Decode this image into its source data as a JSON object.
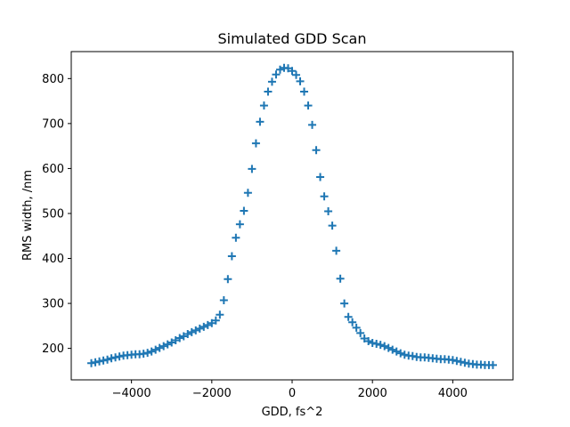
{
  "chart_data": {
    "type": "scatter",
    "title": "Simulated GDD Scan",
    "xlabel": "GDD, fs^2",
    "ylabel": "RMS width, /nm",
    "xlim": [
      -5500,
      5500
    ],
    "ylim": [
      130,
      860
    ],
    "xticks": [
      -4000,
      -2000,
      0,
      2000,
      4000
    ],
    "xtick_labels": [
      "−4000",
      "−2000",
      "0",
      "2000",
      "4000"
    ],
    "yticks": [
      200,
      300,
      400,
      500,
      600,
      700,
      800
    ],
    "ytick_labels": [
      "200",
      "300",
      "400",
      "500",
      "600",
      "700",
      "800"
    ],
    "grid": false,
    "legend": "none",
    "marker": "+",
    "color": "#1f77b4",
    "series": [
      {
        "x": [
          -5000,
          -4900,
          -4800,
          -4700,
          -4600,
          -4500,
          -4400,
          -4300,
          -4200,
          -4100,
          -4000,
          -3900,
          -3800,
          -3700,
          -3600,
          -3500,
          -3400,
          -3300,
          -3200,
          -3100,
          -3000,
          -2900,
          -2800,
          -2700,
          -2600,
          -2500,
          -2400,
          -2300,
          -2200,
          -2100,
          -2000,
          -1900,
          -1800,
          -1700,
          -1600,
          -1500,
          -1400,
          -1300,
          -1200,
          -1100,
          -1000,
          -900,
          -800,
          -700,
          -600,
          -500,
          -400,
          -300,
          -200,
          -100,
          0,
          100,
          200,
          300,
          400,
          500,
          600,
          700,
          800,
          900,
          1000,
          1100,
          1200,
          1300,
          1400,
          1500,
          1600,
          1700,
          1800,
          1900,
          2000,
          2100,
          2200,
          2300,
          2400,
          2500,
          2600,
          2700,
          2800,
          2900,
          3000,
          3100,
          3200,
          3300,
          3400,
          3500,
          3600,
          3700,
          3800,
          3900,
          4000,
          4100,
          4200,
          4300,
          4400,
          4500,
          4600,
          4700,
          4800,
          4900,
          5000
        ],
        "y": [
          167,
          169,
          171,
          173,
          175,
          178,
          180,
          182,
          184,
          185,
          186,
          187,
          187,
          188,
          190,
          193,
          197,
          201,
          205,
          209,
          213,
          218,
          223,
          227,
          232,
          236,
          240,
          244,
          248,
          252,
          256,
          262,
          275,
          307,
          354,
          405,
          446,
          476,
          506,
          546,
          599,
          656,
          704,
          740,
          771,
          793,
          809,
          820,
          824,
          823,
          817,
          808,
          794,
          771,
          740,
          697,
          641,
          581,
          538,
          505,
          473,
          417,
          355,
          300,
          270,
          258,
          246,
          234,
          222,
          216,
          212,
          210,
          208,
          205,
          201,
          197,
          193,
          189,
          186,
          184,
          183,
          181,
          180,
          180,
          179,
          178,
          177,
          176,
          176,
          175,
          174,
          172,
          170,
          168,
          166,
          165,
          164,
          164,
          163,
          163,
          163
        ]
      }
    ]
  }
}
